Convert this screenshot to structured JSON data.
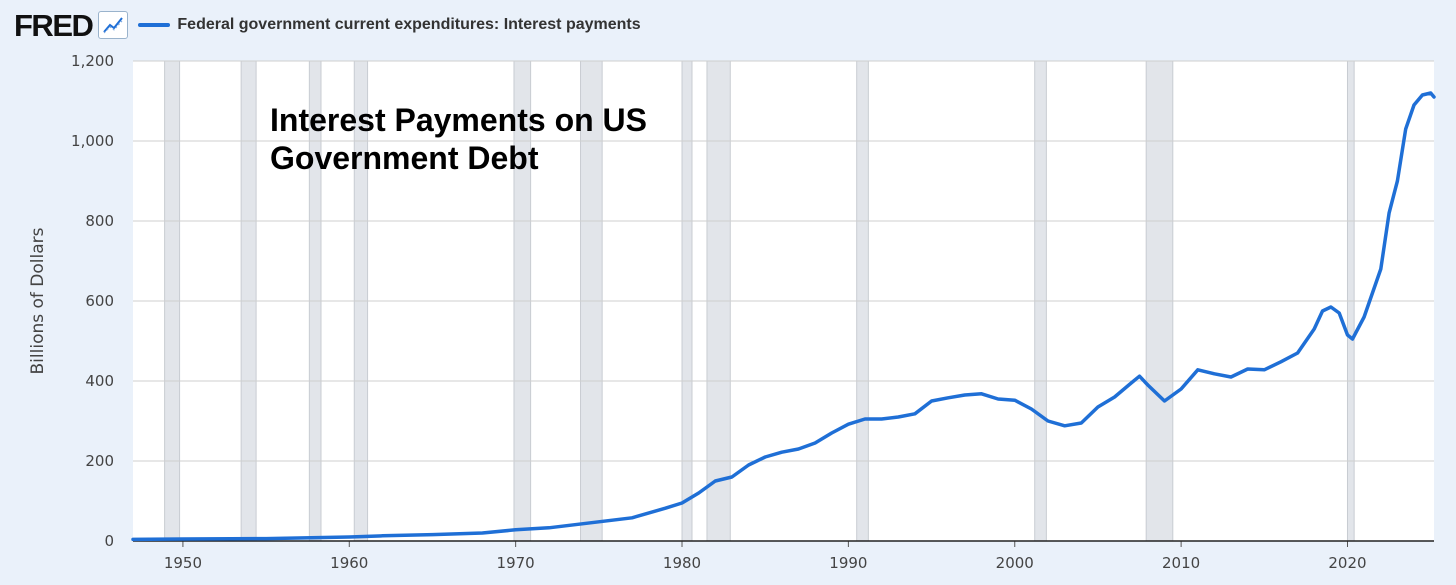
{
  "header": {
    "logo_text": "FRED",
    "logo_icon": "line-chart-icon",
    "legend_label": "Federal government current expenditures: Interest payments"
  },
  "colors": {
    "series": "#1f6fd6",
    "recession": "#e2e5ea",
    "background": "#eaf1fa",
    "plot_bg": "#ffffff",
    "grid": "#cfcfcf"
  },
  "chart_data": {
    "type": "line",
    "title": "",
    "annotation_lines": [
      "Interest Payments on US",
      "Government Debt"
    ],
    "xlabel": "",
    "ylabel": "Billions of Dollars",
    "xlim": [
      1947,
      2025.2
    ],
    "ylim": [
      0,
      1200
    ],
    "x_ticks": [
      1950,
      1960,
      1970,
      1980,
      1990,
      2000,
      2010,
      2020
    ],
    "y_ticks": [
      0,
      200,
      400,
      600,
      800,
      1000,
      1200
    ],
    "y_tick_labels": [
      "0",
      "200",
      "400",
      "600",
      "800",
      "1,000",
      "1,200"
    ],
    "grid": true,
    "legend_position": "top-left",
    "recessions": [
      [
        1948.9,
        1949.8
      ],
      [
        1953.5,
        1954.4
      ],
      [
        1957.6,
        1958.3
      ],
      [
        1960.3,
        1961.1
      ],
      [
        1969.9,
        1970.9
      ],
      [
        1973.9,
        1975.2
      ],
      [
        1980.0,
        1980.6
      ],
      [
        1981.5,
        1982.9
      ],
      [
        1990.5,
        1991.2
      ],
      [
        2001.2,
        2001.9
      ],
      [
        2007.9,
        2009.5
      ],
      [
        2020.0,
        2020.4
      ]
    ],
    "series": [
      {
        "name": "Federal government current expenditures: Interest payments",
        "x": [
          1947,
          1950,
          1955,
          1960,
          1962,
          1965,
          1968,
          1970,
          1972,
          1974,
          1975,
          1977,
          1979,
          1980,
          1981,
          1982,
          1983,
          1984,
          1985,
          1986,
          1987,
          1988,
          1989,
          1990,
          1991,
          1992,
          1993,
          1994,
          1995,
          1996,
          1997,
          1998,
          1999,
          2000,
          2001,
          2002,
          2003,
          2004,
          2005,
          2006,
          2007,
          2007.5,
          2008,
          2009,
          2010,
          2011,
          2012,
          2013,
          2014,
          2015,
          2016,
          2017,
          2018,
          2018.5,
          2019,
          2019.5,
          2020,
          2020.3,
          2021,
          2022,
          2022.5,
          2023,
          2023.5,
          2024,
          2024.5,
          2025,
          2025.2
        ],
        "y": [
          4,
          5,
          6,
          10,
          13,
          16,
          20,
          28,
          33,
          43,
          48,
          58,
          82,
          95,
          120,
          150,
          160,
          190,
          210,
          222,
          230,
          245,
          270,
          292,
          305,
          305,
          310,
          318,
          350,
          358,
          365,
          368,
          355,
          352,
          330,
          300,
          288,
          295,
          335,
          360,
          395,
          412,
          390,
          350,
          380,
          428,
          418,
          410,
          430,
          428,
          448,
          470,
          530,
          575,
          585,
          570,
          515,
          505,
          560,
          680,
          820,
          900,
          1030,
          1090,
          1115,
          1120,
          1110
        ]
      }
    ]
  }
}
